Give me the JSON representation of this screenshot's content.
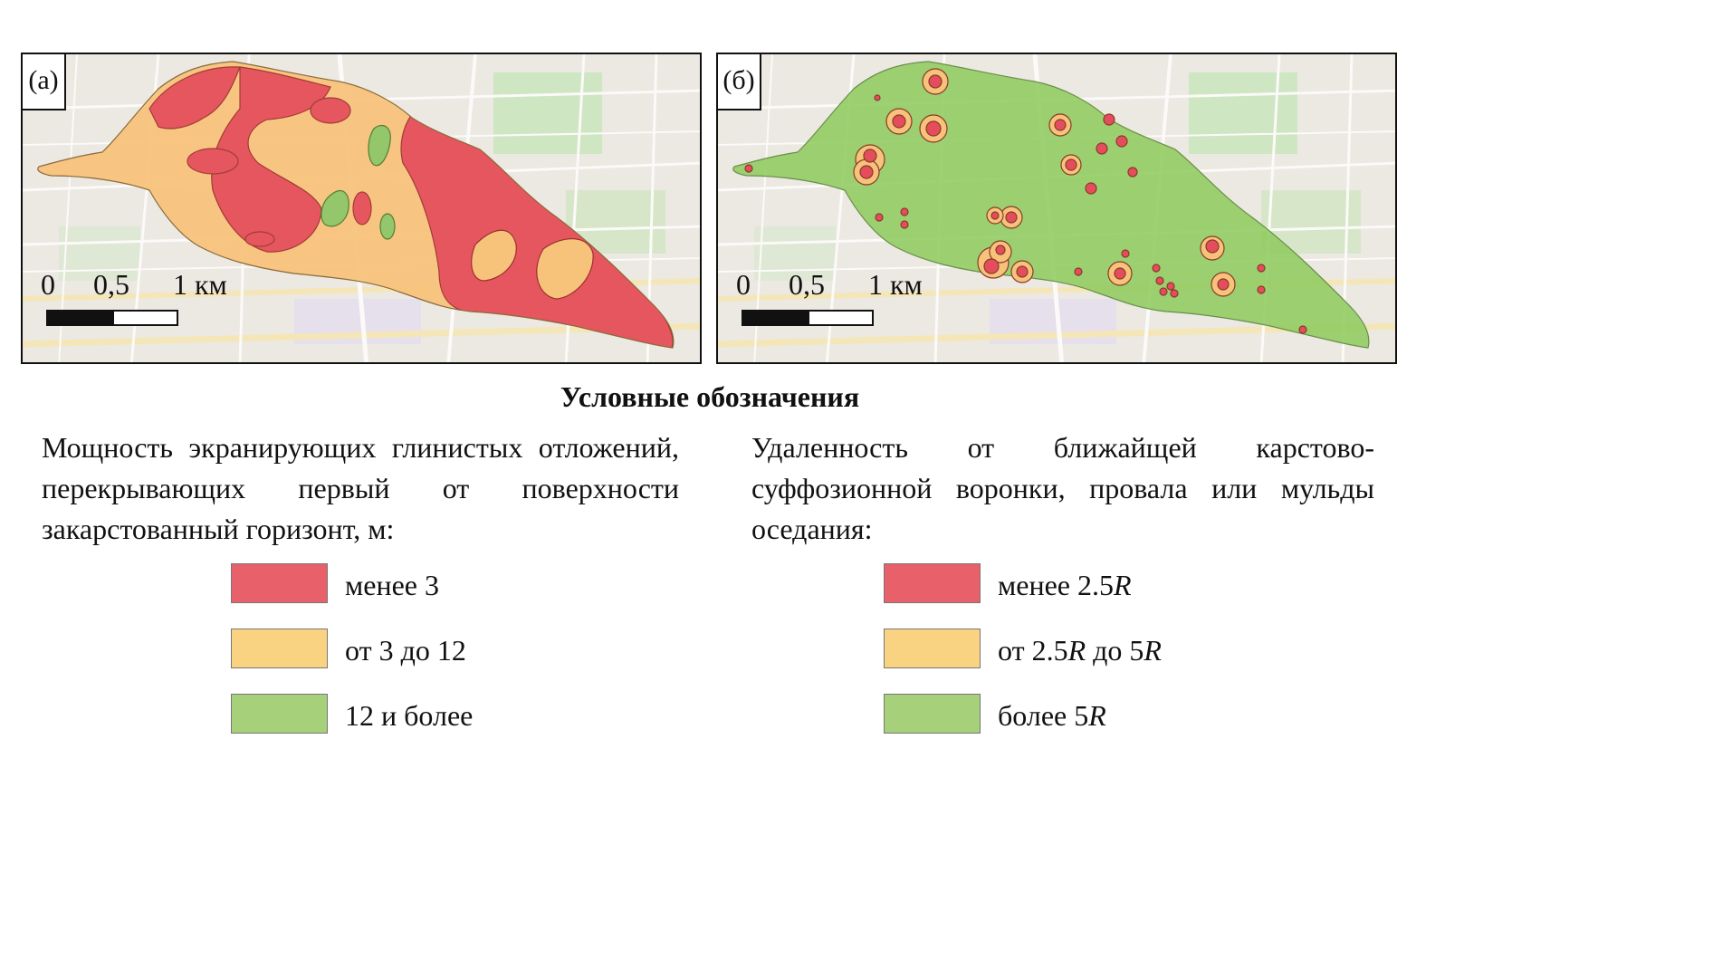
{
  "panels": [
    {
      "tag": "(а)"
    },
    {
      "tag": "(б)"
    }
  ],
  "scale": {
    "labels": [
      "0",
      "0,5",
      "1 км"
    ]
  },
  "legend": {
    "title": "Условные обозначения",
    "thickness": {
      "description": "Мощность экранирующих глинистых отложений, перекрывающих первый от поверхности закарстованный горизонт, м:",
      "items": [
        {
          "label": "менее 3",
          "color": "#e8616a"
        },
        {
          "label": "от 3 до 12",
          "color": "#fad382"
        },
        {
          "label": "12 и более",
          "color": "#a6d17a"
        }
      ]
    },
    "distance": {
      "description": "Удаленность от ближайщей карстово-суффозионной воронки, провала или мульды оседания:",
      "items": [
        {
          "label": "менее 2.5R",
          "color": "#e8616a"
        },
        {
          "label": "от 2.5R до 5R",
          "color": "#fad382"
        },
        {
          "label": "более 5R",
          "color": "#a6d17a"
        }
      ]
    }
  }
}
